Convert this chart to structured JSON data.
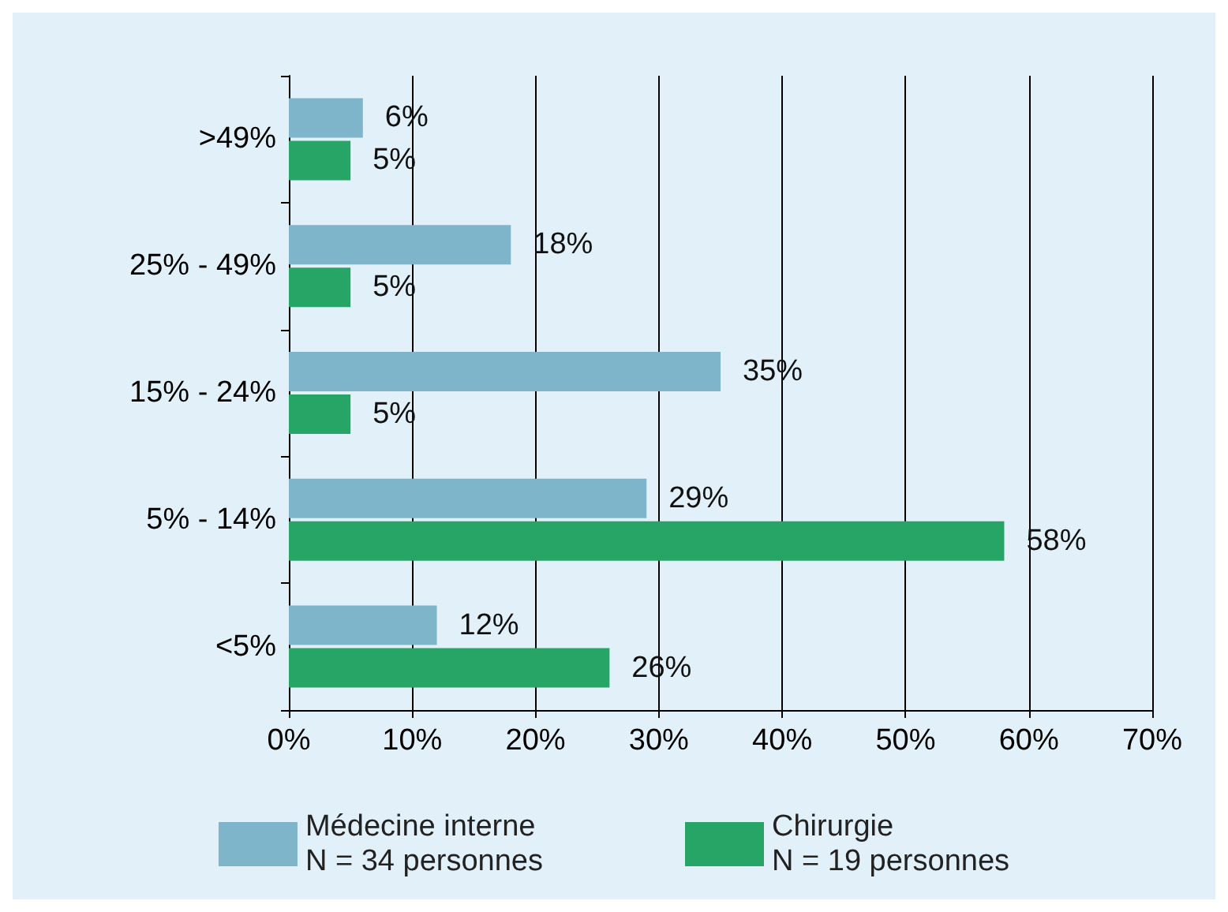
{
  "chart_data": {
    "type": "bar",
    "orientation": "horizontal",
    "categories": [
      ">49%",
      "25% - 49%",
      "15% - 24%",
      "5% - 14%",
      "<5%"
    ],
    "series": [
      {
        "name": "Médecine interne\nN = 34 personnes",
        "color": "#7fb5cb",
        "values": [
          6,
          18,
          35,
          29,
          12
        ],
        "value_labels": [
          "6%",
          "18%",
          "35%",
          "29%",
          "12%"
        ]
      },
      {
        "name": "Chirurgie\nN = 19 personnes",
        "color": "#27a567",
        "values": [
          5,
          5,
          5,
          58,
          26
        ],
        "value_labels": [
          "5%",
          "5%",
          "5%",
          "58%",
          "26%"
        ]
      }
    ],
    "xlim": [
      0,
      70
    ],
    "xticks": [
      {
        "value": 0,
        "label": "0%"
      },
      {
        "value": 10,
        "label": "10%"
      },
      {
        "value": 20,
        "label": "20%"
      },
      {
        "value": 30,
        "label": "30%"
      },
      {
        "value": 40,
        "label": "40%"
      },
      {
        "value": 50,
        "label": "50%"
      },
      {
        "value": 60,
        "label": "60%"
      },
      {
        "value": 70,
        "label": "70%"
      }
    ],
    "grid": "x",
    "legend": "bottom"
  }
}
